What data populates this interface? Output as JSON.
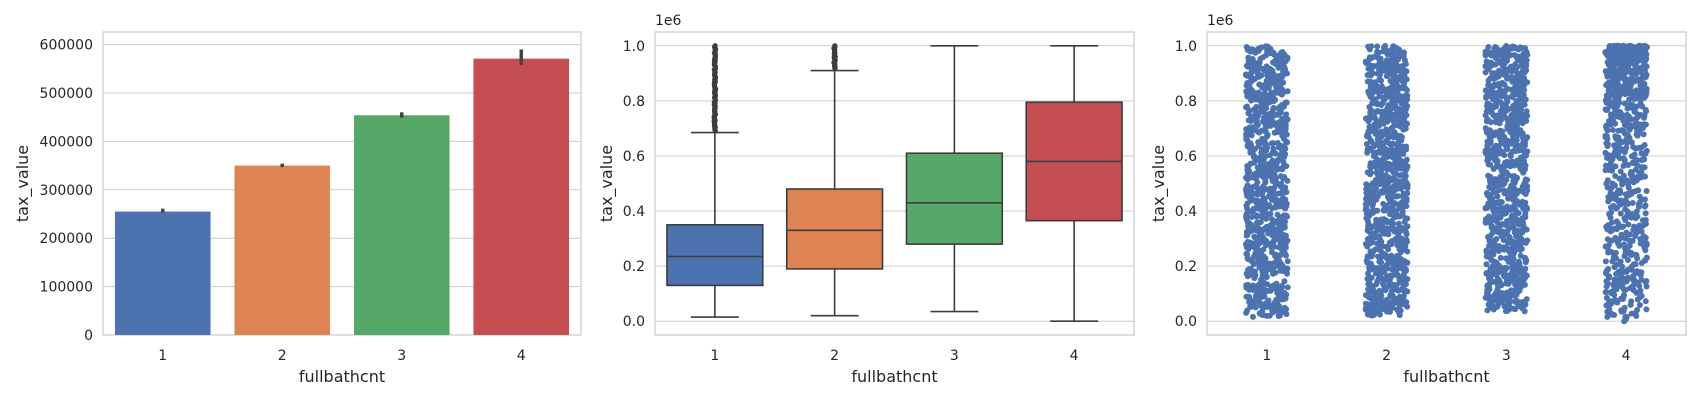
{
  "chart_data": [
    {
      "type": "bar",
      "xlabel": "fullbathcnt",
      "ylabel": "tax_value",
      "categories": [
        "1",
        "2",
        "3",
        "4"
      ],
      "values": [
        255000,
        350000,
        454000,
        571000
      ],
      "error_low": [
        253000,
        347000,
        449000,
        558000
      ],
      "error_high": [
        261000,
        354000,
        460000,
        590000
      ],
      "ylim": [
        0,
        626000
      ],
      "yticks": [
        0,
        100000,
        200000,
        300000,
        400000,
        500000,
        600000
      ],
      "ytick_labels": [
        "0",
        "100000",
        "200000",
        "300000",
        "400000",
        "500000",
        "600000"
      ],
      "colors": [
        "#4c72b0",
        "#dd8452",
        "#55a868",
        "#c44e52"
      ],
      "grid": true
    },
    {
      "type": "box",
      "xlabel": "fullbathcnt",
      "ylabel": "tax_value",
      "offset_text": "1e6",
      "categories": [
        "1",
        "2",
        "3",
        "4"
      ],
      "boxes": [
        {
          "whislo": 0.015,
          "q1": 0.13,
          "median": 0.235,
          "q3": 0.35,
          "whishi": 0.685,
          "fliers_from": 0.69,
          "fliers_to": 1.0
        },
        {
          "whislo": 0.02,
          "q1": 0.19,
          "median": 0.33,
          "q3": 0.48,
          "whishi": 0.91,
          "fliers_from": 0.915,
          "fliers_to": 1.0
        },
        {
          "whislo": 0.035,
          "q1": 0.28,
          "median": 0.43,
          "q3": 0.61,
          "whishi": 1.0
        },
        {
          "whislo": 0.0,
          "q1": 0.365,
          "median": 0.58,
          "q3": 0.795,
          "whishi": 1.0
        }
      ],
      "ylim": [
        -0.05,
        1.05
      ],
      "yticks": [
        0.0,
        0.2,
        0.4,
        0.6,
        0.8,
        1.0
      ],
      "ytick_labels": [
        "0.0",
        "0.2",
        "0.4",
        "0.6",
        "0.8",
        "1.0"
      ],
      "colors": [
        "#4c72b0",
        "#dd8452",
        "#55a868",
        "#c44e52"
      ],
      "grid": true
    },
    {
      "type": "scatter",
      "xlabel": "fullbathcnt",
      "ylabel": "tax_value",
      "offset_text": "1e6",
      "categories": [
        "1",
        "2",
        "3",
        "4"
      ],
      "strips": [
        {
          "min": 0.015,
          "max": 1.0
        },
        {
          "min": 0.02,
          "max": 1.0
        },
        {
          "min": 0.035,
          "max": 1.0
        },
        {
          "min": 0.0,
          "max": 1.0
        }
      ],
      "ylim": [
        -0.05,
        1.05
      ],
      "yticks": [
        0.0,
        0.2,
        0.4,
        0.6,
        0.8,
        1.0
      ],
      "ytick_labels": [
        "0.0",
        "0.2",
        "0.4",
        "0.6",
        "0.8",
        "1.0"
      ],
      "point_color": "#4c72b0",
      "grid": true
    }
  ]
}
